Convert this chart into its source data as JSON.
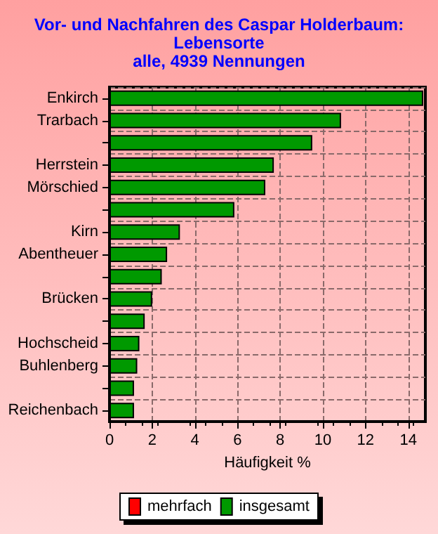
{
  "chart_data": {
    "type": "bar",
    "orientation": "horizontal",
    "title": "Vor- und Nachfahren des Caspar Holderbaum:\nLebensorte\nalle, 4939 Nennungen",
    "xlabel": "Häufigkeit %",
    "categories": [
      "Enkirch",
      "Trarbach",
      null,
      "Herrstein",
      "Mörschied",
      null,
      "Kirn",
      "Abentheuer",
      null,
      "Brücken",
      null,
      "Hochscheid",
      "Buhlenberg",
      null,
      "Reichenbach"
    ],
    "series": [
      {
        "name": "mehrfach",
        "color": "#ff0000",
        "values": [
          null,
          null,
          null,
          null,
          null,
          null,
          null,
          null,
          null,
          null,
          null,
          null,
          null,
          null,
          null
        ]
      },
      {
        "name": "insgesamt",
        "color": "#009900",
        "values": [
          14.7,
          10.85,
          9.5,
          7.7,
          7.3,
          5.85,
          3.3,
          2.7,
          2.45,
          2.0,
          1.65,
          1.4,
          1.3,
          1.15,
          1.15
        ]
      }
    ],
    "xlim": [
      0,
      14.8
    ],
    "xticks": [
      0,
      2,
      4,
      6,
      8,
      10,
      12,
      14
    ],
    "grid": true,
    "legend": "bottom"
  }
}
